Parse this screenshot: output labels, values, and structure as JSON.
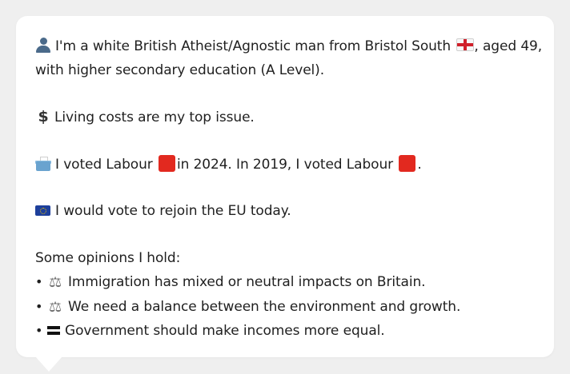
{
  "profile": {
    "line1": "I'm a white British Atheist/Agnostic man from Bristol South",
    "line1_after_flag": ", aged 49,",
    "line2": "with higher secondary education (A Level).",
    "top_issue": "Living costs are my top issue.",
    "vote_part1": "I voted Labour",
    "vote_part2": "in 2024. In 2019, I voted Labour",
    "vote_part3": ".",
    "eu": "I would vote to rejoin the EU today."
  },
  "opinions": {
    "heading": "Some opinions I hold:",
    "items": [
      "Immigration has mixed or neutral impacts on Britain.",
      "We need a balance between the environment and growth.",
      "Government should make incomes more equal."
    ]
  },
  "icons": {
    "person": "person-icon",
    "flag": "england-flag-icon",
    "money": "dollar-icon",
    "ballot": "ballot-box-icon",
    "party": "red-square-icon",
    "eu": "eu-flag-icon",
    "scales": "balance-scale-icon",
    "equals": "equals-icon"
  },
  "colors": {
    "background": "#efefef",
    "bubble": "#ffffff",
    "labour_red": "#e2291f"
  }
}
